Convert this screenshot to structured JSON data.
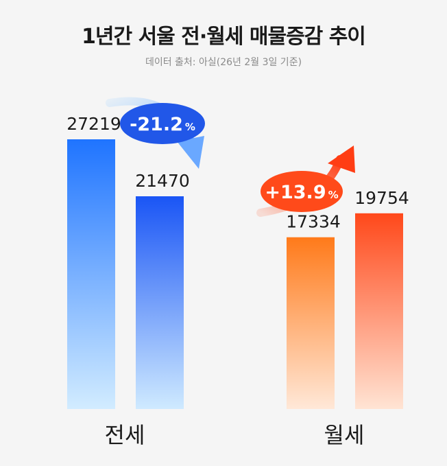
{
  "title": "1년간 서울 전·월세 매물증감 추이",
  "subtitle": "데이터 출처: 아실(26년 2월 3일 기준)",
  "chart_data": {
    "type": "bar",
    "title": "1년간 서울 전·월세 매물증감 추이",
    "subtitle": "데이터 출처: 아실(26년 2월 3일 기준)",
    "categories": [
      "전세",
      "월세"
    ],
    "groups": [
      {
        "label": "전세",
        "values": [
          27219,
          21470
        ],
        "change": "-21.2",
        "change_unit": "%",
        "colors": {
          "top": "#1a6bff",
          "bottom": "#cde9ff",
          "badge": "#2157e8"
        }
      },
      {
        "label": "월세",
        "values": [
          17334,
          19754
        ],
        "change": "+13.9",
        "change_unit": "%",
        "colors": {
          "top": "#ff4a1a",
          "bottom": "#ffe6d3",
          "badge": "#ff4a1a"
        }
      }
    ],
    "grid": false,
    "legend": "none"
  }
}
